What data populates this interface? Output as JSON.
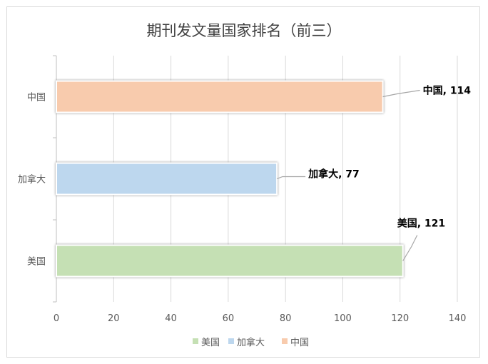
{
  "chart_data": {
    "type": "bar",
    "orientation": "horizontal",
    "title": "期刊发文量国家排名（前三）",
    "categories": [
      "中国",
      "加拿大",
      "美国"
    ],
    "values": [
      114,
      77,
      121
    ],
    "data_labels": [
      "中国, 114",
      "加拿大, 77",
      "美国, 121"
    ],
    "colors": [
      "#f8cbad",
      "#bdd7ee",
      "#c5e0b4"
    ],
    "xlim": [
      0,
      140
    ],
    "x_ticks": [
      "0",
      "20",
      "40",
      "60",
      "80",
      "100",
      "120",
      "140"
    ],
    "grid": true,
    "legend_position": "bottom",
    "legend": [
      {
        "name": "美国",
        "color": "#c5e0b4"
      },
      {
        "name": "加拿大",
        "color": "#bdd7ee"
      },
      {
        "name": "中国",
        "color": "#f8cbad"
      }
    ]
  }
}
